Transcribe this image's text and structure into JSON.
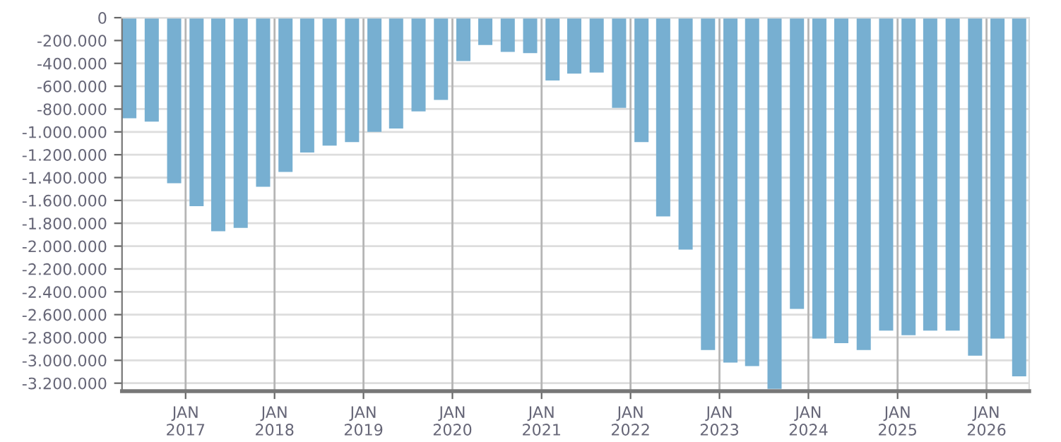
{
  "chart_data": {
    "type": "bar",
    "color": "#77afd1",
    "x": [
      "2016-05-15",
      "2016-08-15",
      "2016-11-15",
      "2017-02-15",
      "2017-05-15",
      "2017-08-15",
      "2017-11-15",
      "2018-02-15",
      "2018-05-15",
      "2018-08-15",
      "2018-11-15",
      "2019-02-15",
      "2019-05-15",
      "2019-08-15",
      "2019-11-15",
      "2020-02-15",
      "2020-05-15",
      "2020-08-15",
      "2020-11-15",
      "2021-02-15",
      "2021-05-15",
      "2021-08-15",
      "2021-11-15",
      "2022-02-15",
      "2022-05-15",
      "2022-08-15",
      "2022-11-15",
      "2023-02-15",
      "2023-05-15",
      "2023-08-15",
      "2023-11-15",
      "2024-02-15",
      "2024-05-15",
      "2024-08-15",
      "2024-11-15",
      "2025-02-15",
      "2025-05-15",
      "2025-08-15",
      "2025-11-15",
      "2026-02-15",
      "2026-05-15"
    ],
    "values": [
      -880000,
      -910000,
      -1450000,
      -1650000,
      -1870000,
      -1840000,
      -1480000,
      -1350000,
      -1180000,
      -1120000,
      -1090000,
      -1000000,
      -970000,
      -820000,
      -720000,
      -380000,
      -240000,
      -300000,
      -310000,
      -550000,
      -490000,
      -480000,
      -790000,
      -1090000,
      -1740000,
      -2030000,
      -2910000,
      -3020000,
      -3050000,
      -3250000,
      -2550000,
      -2810000,
      -2850000,
      -2910000,
      -2740000,
      -2780000,
      -2740000,
      -2740000,
      -2960000,
      -2810000,
      -3140000
    ],
    "xlim": [
      "2016-04-15",
      "2026-06-25"
    ],
    "xticks": [
      {
        "value": "2017-01-01",
        "label": "JAN\n2017"
      },
      {
        "value": "2018-01-01",
        "label": "JAN\n2018"
      },
      {
        "value": "2019-01-01",
        "label": "JAN\n2019"
      },
      {
        "value": "2020-01-01",
        "label": "JAN\n2020"
      },
      {
        "value": "2021-01-01",
        "label": "JAN\n2021"
      },
      {
        "value": "2022-01-01",
        "label": "JAN\n2022"
      },
      {
        "value": "2023-01-01",
        "label": "JAN\n2023"
      },
      {
        "value": "2024-01-01",
        "label": "JAN\n2024"
      },
      {
        "value": "2025-01-01",
        "label": "JAN\n2025"
      },
      {
        "value": "2026-01-01",
        "label": "JAN\n2026"
      }
    ],
    "ylim": [
      -3270000,
      0
    ],
    "yticks": [
      0,
      {
        "value": -200000,
        "label": "-200.000"
      },
      {
        "value": -400000,
        "label": "-400.000"
      },
      {
        "value": -600000,
        "label": "-600.000"
      },
      {
        "value": -800000,
        "label": "-800.000"
      },
      {
        "value": -1000000,
        "label": "-1.000.000"
      },
      {
        "value": -1200000,
        "label": "-1.200.000"
      },
      {
        "value": -1400000,
        "label": "-1.400.000"
      },
      {
        "value": -1600000,
        "label": "-1.600.000"
      },
      {
        "value": -1800000,
        "label": "-1.800.000"
      },
      {
        "value": -2000000,
        "label": "-2.000.000"
      },
      {
        "value": -2200000,
        "label": "-2.200.000"
      },
      {
        "value": -2400000,
        "label": "-2.400.000"
      },
      {
        "value": -2600000,
        "label": "-2.600.000"
      },
      {
        "value": -2800000,
        "label": "-2.800.000"
      },
      {
        "value": -3000000,
        "label": "-3.000.000"
      },
      {
        "value": -3200000,
        "label": "-3.200.000"
      }
    ],
    "grid": true
  }
}
